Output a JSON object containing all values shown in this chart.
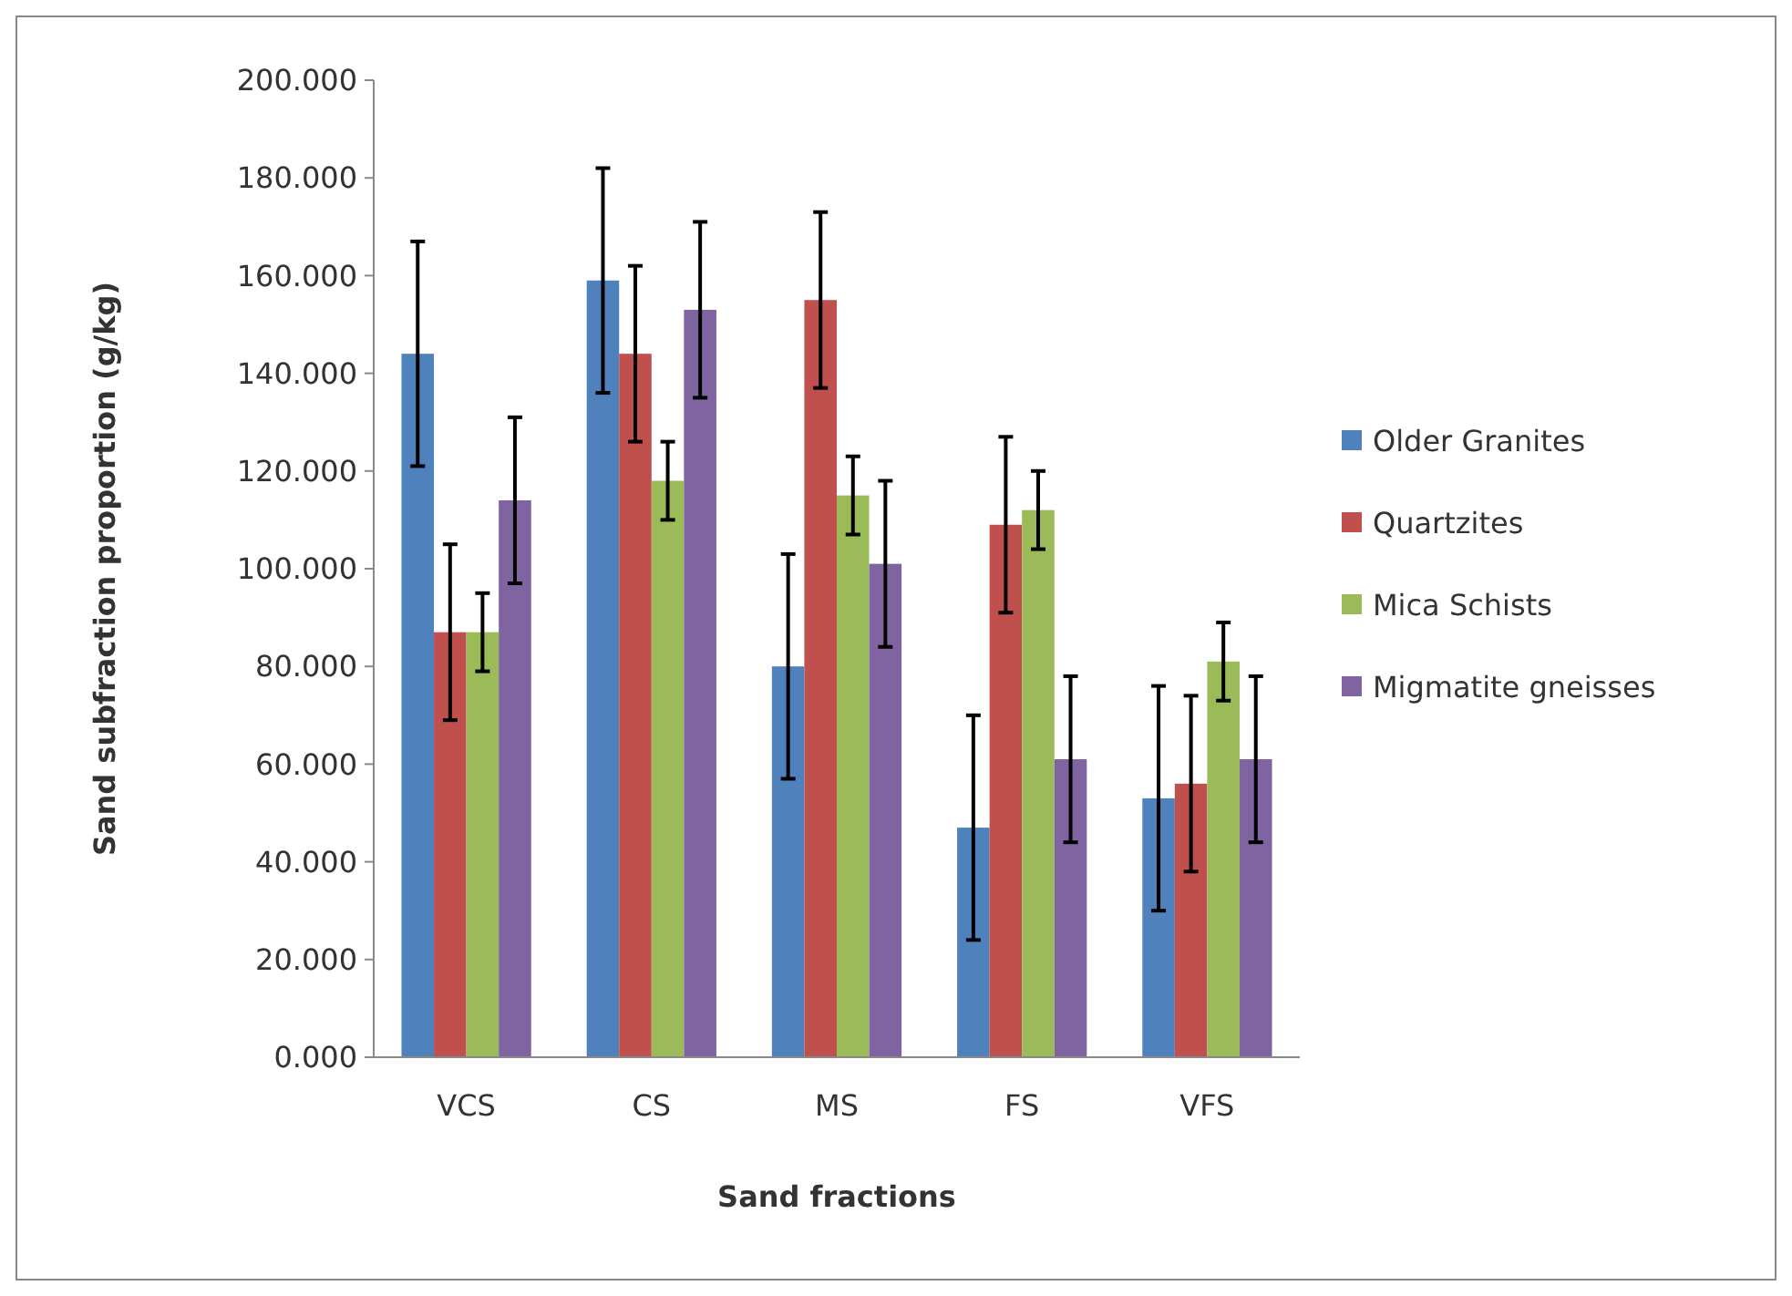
{
  "chart_data": {
    "type": "bar",
    "xlabel": "Sand fractions",
    "ylabel": "Sand subfraction proportion (g/kg)",
    "categories": [
      "VCS",
      "CS",
      "MS",
      "FS",
      "VFS"
    ],
    "series": [
      {
        "name": "Older Granites",
        "color": "#4f81bd",
        "values": [
          144,
          159,
          80,
          47,
          53
        ],
        "errors": [
          23,
          23,
          23,
          23,
          23
        ]
      },
      {
        "name": "Quartzites",
        "color": "#c0504d",
        "values": [
          87,
          144,
          155,
          109,
          56
        ],
        "errors": [
          18,
          18,
          18,
          18,
          18
        ]
      },
      {
        "name": "Mica Schists",
        "color": "#9bbb59",
        "values": [
          87,
          118,
          115,
          112,
          81
        ],
        "errors": [
          8,
          8,
          8,
          8,
          8
        ]
      },
      {
        "name": "Migmatite gneisses",
        "color": "#8064a2",
        "values": [
          114,
          153,
          101,
          61,
          61
        ],
        "errors": [
          17,
          18,
          17,
          17,
          17
        ]
      }
    ],
    "ylim": [
      0,
      200
    ],
    "yticks": [
      {
        "value": 0,
        "label": "0.000"
      },
      {
        "value": 20,
        "label": "20.000"
      },
      {
        "value": 40,
        "label": "40.000"
      },
      {
        "value": 60,
        "label": "60.000"
      },
      {
        "value": 80,
        "label": "80.000"
      },
      {
        "value": 100,
        "label": "100.000"
      },
      {
        "value": 120,
        "label": "120.000"
      },
      {
        "value": 140,
        "label": "140.000"
      },
      {
        "value": 160,
        "label": "160.000"
      },
      {
        "value": 180,
        "label": "180.000"
      },
      {
        "value": 200,
        "label": "200.000"
      }
    ],
    "grid": false,
    "legend": "right"
  }
}
